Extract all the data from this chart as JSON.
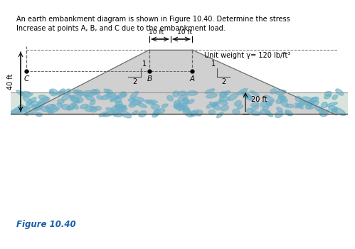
{
  "title_text": "An earth embankment diagram is shown in Figure 10.40. Determine the stress\nIncrease at points A, B, and C due to the embankment load.",
  "figure_label": "Figure 10.40",
  "unit_weight_label": "Unit weight γ= 120 lb/ft³",
  "embankment_color": "#d0d0d0",
  "soil_bg_color": "#dde8e0",
  "soil_oval_color": "#6ab0c8",
  "background_color": "#ffffff",
  "slope_label_1": "1",
  "slope_label_2": "2",
  "dim_10ft_left": "10 ft",
  "dim_10ft_right": "10 ft",
  "dim_40ft": "40 ft",
  "dim_20ft": "20 ft",
  "label_A": "A",
  "label_B": "B",
  "label_C": "C",
  "fig_label_color": "#1a5faa"
}
